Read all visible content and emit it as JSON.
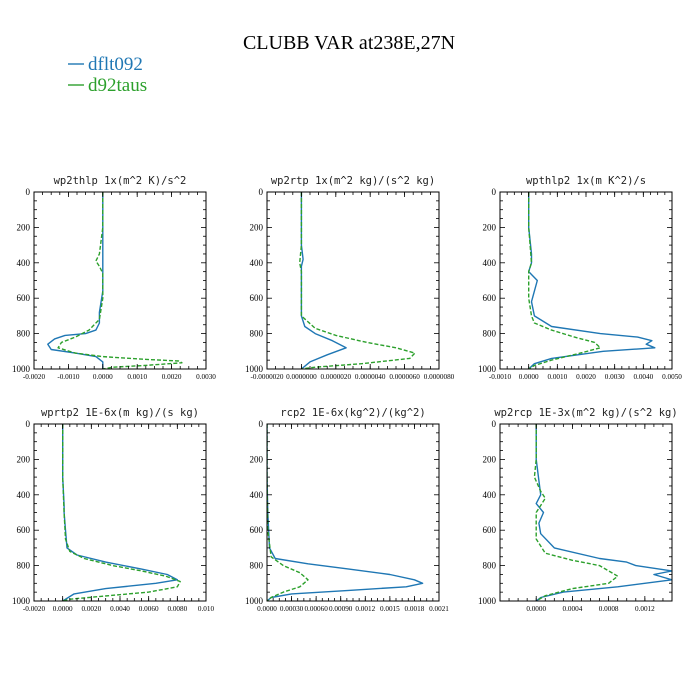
{
  "figure": {
    "title": "CLUBB VAR at238E,27N",
    "legend": [
      {
        "name": "dflt092",
        "color": "#1f77b4",
        "dash": "solid"
      },
      {
        "name": "d92taus",
        "color": "#2ca02c",
        "dash": "dashed"
      }
    ]
  },
  "chart_data": [
    {
      "type": "line",
      "title": "wp2thlp   1x(m^2 K)/s^2",
      "ylim": [
        1000,
        0
      ],
      "yticks": [
        0,
        200,
        400,
        600,
        800,
        1000
      ],
      "xlim": [
        -0.002,
        0.003
      ],
      "xticks": [
        -0.002,
        -0.001,
        0.0,
        0.001,
        0.002,
        0.003
      ],
      "xtick_labels": [
        "-0.0020",
        "-0.0010",
        "0.0000",
        "0.0010",
        "0.0020",
        "0.0030"
      ],
      "series": [
        {
          "name": "dflt092",
          "x": [
            0.0,
            0.0,
            0.0,
            0.0,
            0.0,
            0.0,
            -0.0001,
            -0.0001,
            -0.0002,
            -0.0005,
            -0.0011,
            -0.0014,
            -0.0016,
            -0.0015,
            -0.0008,
            -0.0002,
            0.0,
            0.0
          ],
          "y": [
            0,
            200,
            350,
            400,
            460,
            560,
            680,
            740,
            780,
            800,
            810,
            830,
            860,
            890,
            910,
            930,
            960,
            1000
          ]
        },
        {
          "name": "d92taus",
          "x": [
            0.0,
            0.0,
            -0.0001,
            -0.0002,
            -0.0001,
            0.0,
            0.0,
            -0.0001,
            -0.0004,
            -0.0008,
            -0.0012,
            -0.0013,
            -0.0008,
            0.0,
            0.0012,
            0.0022,
            0.0023,
            0.0012,
            0.0003,
            0.0
          ],
          "y": [
            0,
            200,
            350,
            390,
            420,
            460,
            600,
            720,
            780,
            820,
            850,
            880,
            910,
            930,
            945,
            955,
            965,
            980,
            990,
            1000
          ]
        }
      ]
    },
    {
      "type": "line",
      "title": "wp2rtp   1x(m^2 kg)/(s^2 kg)",
      "ylim": [
        1000,
        0
      ],
      "yticks": [
        0,
        200,
        400,
        600,
        800,
        1000
      ],
      "xlim": [
        -2e-06,
        8e-06
      ],
      "xticks": [
        -2e-06,
        0.0,
        2e-06,
        4e-06,
        6e-06,
        8e-06
      ],
      "xtick_labels": [
        "-0.0000020",
        "0.0000000",
        "0.0000020",
        "0.0000040",
        "0.0000060",
        "0.0000080"
      ],
      "series": [
        {
          "name": "dflt092",
          "x": [
            0.0,
            0.0,
            1e-07,
            0.0,
            0.0,
            0.0,
            2e-07,
            8e-07,
            1.8e-06,
            2.6e-06,
            1.5e-06,
            5e-07,
            0.0
          ],
          "y": [
            0,
            300,
            380,
            420,
            480,
            700,
            760,
            800,
            840,
            880,
            920,
            960,
            1000
          ]
        },
        {
          "name": "d92taus",
          "x": [
            0.0,
            0.0,
            -1e-07,
            0.0,
            0.0,
            8e-07,
            2e-06,
            3.8e-06,
            5.5e-06,
            6.6e-06,
            6.3e-06,
            3.5e-06,
            8e-07,
            0.0
          ],
          "y": [
            0,
            300,
            400,
            450,
            700,
            770,
            810,
            850,
            880,
            910,
            940,
            970,
            990,
            1000
          ]
        }
      ]
    },
    {
      "type": "line",
      "title": "wpthlp2   1x(m K^2)/s",
      "ylim": [
        1000,
        0
      ],
      "yticks": [
        0,
        200,
        400,
        600,
        800,
        1000
      ],
      "xlim": [
        -0.001,
        0.005
      ],
      "xticks": [
        -0.001,
        0.0,
        0.001,
        0.002,
        0.003,
        0.004,
        0.005
      ],
      "xtick_labels": [
        "-0.0010",
        "0.0000",
        "0.0010",
        "0.0020",
        "0.0030",
        "0.0040",
        "0.0050"
      ],
      "series": [
        {
          "name": "dflt092",
          "x": [
            0.0,
            0.0,
            0.0001,
            0.0001,
            0.0,
            0.0003,
            0.0002,
            0.0001,
            0.0002,
            0.0008,
            0.0025,
            0.0038,
            0.0043,
            0.0041,
            0.0044,
            0.0026,
            0.0008,
            0.0002,
            0.0
          ],
          "y": [
            0,
            200,
            350,
            400,
            450,
            500,
            560,
            620,
            700,
            760,
            800,
            820,
            840,
            860,
            880,
            900,
            940,
            970,
            1000
          ]
        },
        {
          "name": "d92taus",
          "x": [
            0.0,
            0.0,
            0.0001,
            0.0,
            0.0,
            0.0001,
            0.0002,
            0.0008,
            0.0016,
            0.0023,
            0.0025,
            0.0018,
            0.0008,
            0.0002,
            0.0
          ],
          "y": [
            0,
            200,
            400,
            450,
            600,
            700,
            740,
            780,
            820,
            850,
            880,
            910,
            950,
            980,
            1000
          ]
        }
      ]
    },
    {
      "type": "line",
      "title": "wprtp2   1E-6x(m kg)/(s kg)",
      "ylim": [
        1000,
        0
      ],
      "yticks": [
        0,
        200,
        400,
        600,
        800,
        1000
      ],
      "xlim": [
        -0.002,
        0.01
      ],
      "xticks": [
        -0.002,
        0.0,
        0.002,
        0.004,
        0.006,
        0.008,
        0.01
      ],
      "xtick_labels": [
        "-0.0020",
        "0.0000",
        "0.0020",
        "0.0040",
        "0.0060",
        "0.0080",
        "0.010"
      ],
      "series": [
        {
          "name": "dflt092",
          "x": [
            0.0,
            0.0,
            0.0001,
            0.0001,
            0.0002,
            0.0003,
            0.001,
            0.003,
            0.0055,
            0.0073,
            0.008,
            0.0065,
            0.003,
            0.0008,
            0.0
          ],
          "y": [
            0,
            300,
            460,
            500,
            600,
            700,
            740,
            780,
            820,
            850,
            880,
            900,
            930,
            960,
            1000
          ]
        },
        {
          "name": "d92taus",
          "x": [
            0.0,
            0.0,
            0.0001,
            0.0002,
            0.0005,
            0.0015,
            0.0035,
            0.0055,
            0.0072,
            0.0082,
            0.008,
            0.006,
            0.0025,
            0.0005,
            0.0
          ],
          "y": [
            0,
            300,
            500,
            650,
            720,
            760,
            800,
            830,
            860,
            890,
            920,
            950,
            975,
            990,
            1000
          ]
        }
      ]
    },
    {
      "type": "line",
      "title": "rcp2   1E-6x(kg^2)/(kg^2)",
      "ylim": [
        1000,
        0
      ],
      "yticks": [
        0,
        200,
        400,
        600,
        800,
        1000
      ],
      "xlim": [
        0.0,
        0.0021
      ],
      "xticks": [
        0.0,
        0.0003,
        0.0006,
        0.0009,
        0.0012,
        0.0015,
        0.0018,
        0.0021
      ],
      "xtick_labels": [
        "0.0000",
        "0.00030",
        "0.00060",
        "0.00090",
        "0.0012",
        "0.0015",
        "0.0018",
        "0.0021"
      ],
      "series": [
        {
          "name": "dflt092",
          "x": [
            0.0,
            0.0,
            1e-05,
            3e-05,
            0.0001,
            0.0005,
            0.001,
            0.0015,
            0.0018,
            0.0019,
            0.0017,
            0.001,
            0.0003,
            5e-05,
            0.0
          ],
          "y": [
            0,
            300,
            500,
            700,
            760,
            790,
            820,
            850,
            880,
            900,
            920,
            940,
            960,
            980,
            1000
          ]
        },
        {
          "name": "d92taus",
          "x": [
            0.0,
            0.0,
            1e-05,
            5e-05,
            0.0002,
            0.0004,
            0.0005,
            0.0004,
            0.0002,
            5e-05,
            0.0
          ],
          "y": [
            0,
            300,
            600,
            750,
            800,
            840,
            880,
            920,
            950,
            980,
            1000
          ]
        }
      ]
    },
    {
      "type": "line",
      "title": "wp2rcp   1E-3x(m^2 kg)/(s^2 kg)",
      "ylim": [
        1000,
        0
      ],
      "yticks": [
        0,
        200,
        400,
        600,
        800,
        1000
      ],
      "xlim": [
        -0.0004,
        0.0015
      ],
      "xticks": [
        0.0,
        0.0004,
        0.0008,
        0.0012
      ],
      "xtick_labels": [
        "0.0000",
        "0.0004",
        "0.0008",
        "0.0012"
      ],
      "series": [
        {
          "name": "dflt092",
          "x": [
            0.0,
            0.0,
            5e-05,
            0.0,
            8e-05,
            3e-05,
            5e-05,
            0.0002,
            0.0007,
            0.001,
            0.0011,
            0.0015,
            0.0013,
            0.0015,
            0.0009,
            0.0003,
            5e-05,
            0.0
          ],
          "y": [
            0,
            200,
            400,
            450,
            500,
            560,
            620,
            700,
            760,
            780,
            800,
            830,
            850,
            880,
            920,
            950,
            980,
            1000
          ]
        },
        {
          "name": "d92taus",
          "x": [
            0.0,
            0.0,
            -2e-05,
            5e-05,
            0.0001,
            0.0,
            0.0,
            0.0001,
            0.0004,
            0.0007,
            0.0009,
            0.0008,
            0.0004,
            0.0001,
            0.0
          ],
          "y": [
            0,
            200,
            300,
            380,
            420,
            500,
            650,
            730,
            770,
            800,
            860,
            900,
            930,
            970,
            1000
          ]
        }
      ]
    }
  ]
}
